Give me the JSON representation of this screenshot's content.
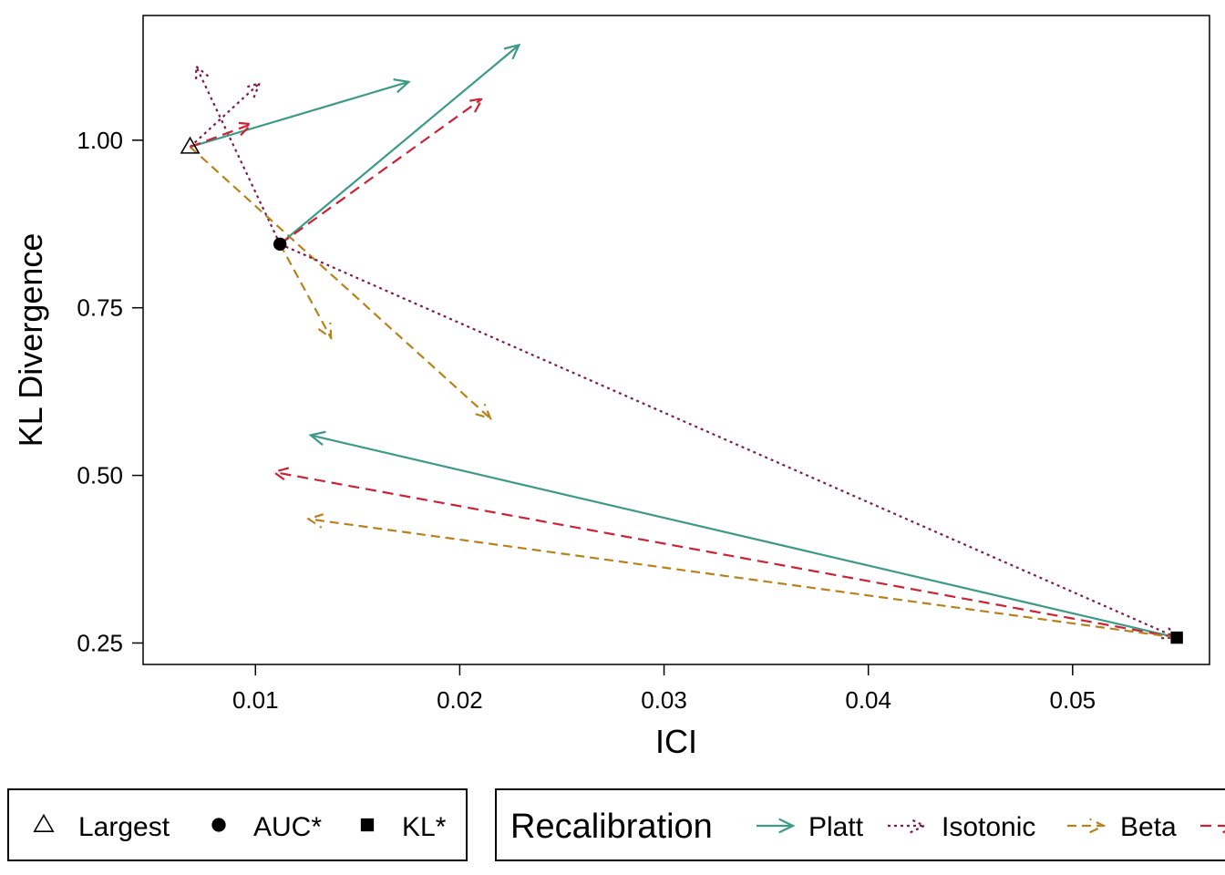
{
  "chart_data": {
    "type": "scatter",
    "xlabel": "ICI",
    "ylabel": "KL Divergence",
    "xlim": [
      0.0045,
      0.0567
    ],
    "ylim": [
      0.218,
      1.186
    ],
    "x_ticks": [
      {
        "value": 0.01,
        "label": "0.01"
      },
      {
        "value": 0.02,
        "label": "0.02"
      },
      {
        "value": 0.03,
        "label": "0.03"
      },
      {
        "value": 0.04,
        "label": "0.04"
      },
      {
        "value": 0.05,
        "label": "0.05"
      }
    ],
    "y_ticks": [
      {
        "value": 0.25,
        "label": "0.25"
      },
      {
        "value": 0.5,
        "label": "0.50"
      },
      {
        "value": 0.75,
        "label": "0.75"
      },
      {
        "value": 1.0,
        "label": "1.00"
      }
    ],
    "points": [
      {
        "name": "Largest",
        "shape": "triangle-open",
        "x": 0.0068,
        "y": 0.99
      },
      {
        "name": "AUC*",
        "shape": "circle-filled",
        "x": 0.0112,
        "y": 0.845
      },
      {
        "name": "KL*",
        "shape": "square-filled",
        "x": 0.0551,
        "y": 0.258
      }
    ],
    "arrows": [
      {
        "method": "Platt",
        "from": [
          0.0068,
          0.99
        ],
        "to": [
          0.0175,
          1.087
        ]
      },
      {
        "method": "Isotonic",
        "from": [
          0.0068,
          0.99
        ],
        "to": [
          0.0102,
          1.085
        ]
      },
      {
        "method": "Isotonic",
        "from": [
          0.0112,
          0.845
        ],
        "to": [
          0.0071,
          1.11
        ]
      },
      {
        "method": "Beta",
        "from": [
          0.0068,
          0.99
        ],
        "to": [
          0.0215,
          0.585
        ]
      },
      {
        "method": "Other",
        "from": [
          0.0068,
          0.99
        ],
        "to": [
          0.0098,
          1.024
        ]
      },
      {
        "method": "Platt",
        "from": [
          0.0112,
          0.845
        ],
        "to": [
          0.0229,
          1.142
        ]
      },
      {
        "method": "Other",
        "from": [
          0.0112,
          0.845
        ],
        "to": [
          0.0211,
          1.062
        ]
      },
      {
        "method": "Beta",
        "from": [
          0.0112,
          0.845
        ],
        "to": [
          0.0137,
          0.705
        ]
      },
      {
        "method": "Isotonic",
        "from": [
          0.0112,
          0.845
        ],
        "to": [
          0.0551,
          0.258
        ]
      },
      {
        "method": "Platt",
        "from": [
          0.0551,
          0.258
        ],
        "to": [
          0.0127,
          0.56
        ]
      },
      {
        "method": "Other",
        "from": [
          0.0551,
          0.258
        ],
        "to": [
          0.0109,
          0.505
        ]
      },
      {
        "method": "Beta",
        "from": [
          0.0551,
          0.258
        ],
        "to": [
          0.0126,
          0.435
        ]
      }
    ]
  },
  "styles": {
    "Platt": {
      "color": "#3d9a86",
      "dash": ""
    },
    "Isotonic": {
      "color": "#7b1e4b",
      "dash": "3,4"
    },
    "Beta": {
      "color": "#b8821a",
      "dash": "10,6"
    },
    "Other": {
      "color": "#cc2233",
      "dash": "12,7"
    }
  },
  "legend_points": {
    "items": [
      {
        "label": "Largest",
        "shape": "triangle-open"
      },
      {
        "label": "AUC*",
        "shape": "circle-filled"
      },
      {
        "label": "KL*",
        "shape": "square-filled"
      }
    ]
  },
  "legend_methods": {
    "title": "Recalibration",
    "items": [
      {
        "label": "Platt",
        "method": "Platt"
      },
      {
        "label": "Isotonic",
        "method": "Isotonic"
      },
      {
        "label": "Beta",
        "method": "Beta"
      },
      {
        "label": "",
        "method": "Other"
      }
    ]
  }
}
